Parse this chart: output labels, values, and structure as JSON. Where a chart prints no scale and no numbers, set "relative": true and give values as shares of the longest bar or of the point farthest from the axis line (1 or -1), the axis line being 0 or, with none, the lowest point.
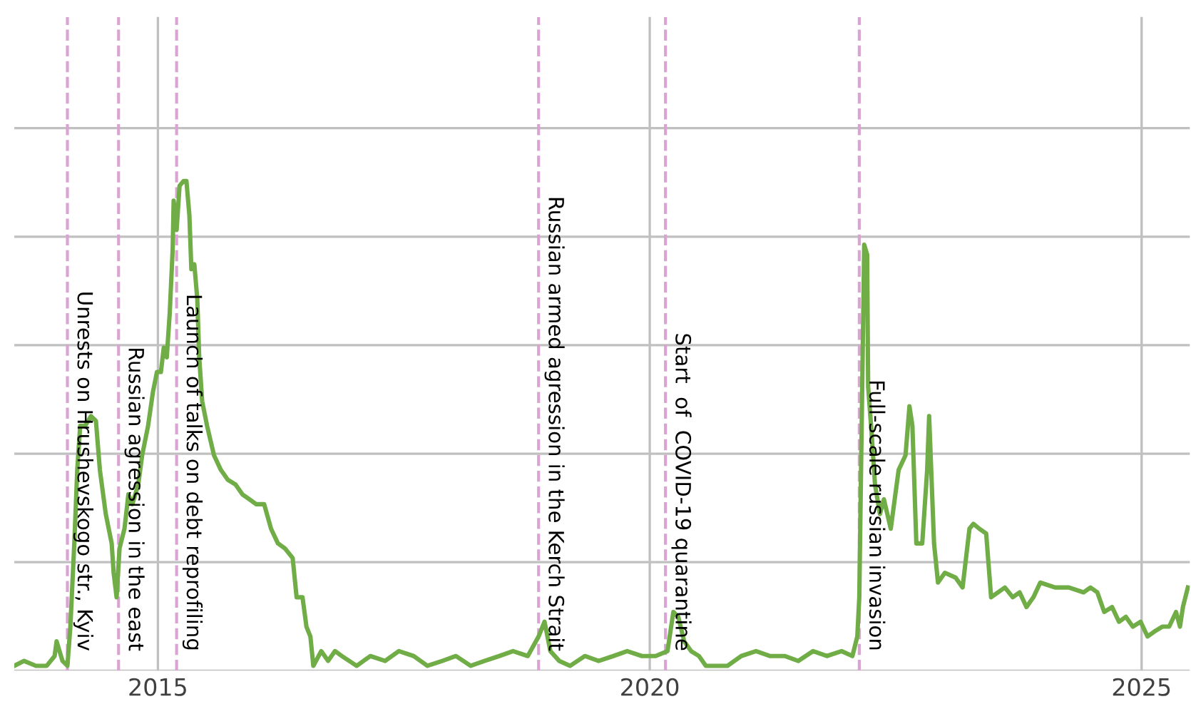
{
  "chart_data": {
    "type": "line",
    "relative": true,
    "tick_labels": "x",
    "grid": true,
    "marker": "none",
    "line_style": "solid",
    "xlim": [
      2013.54,
      2025.49
    ],
    "xticks": [
      2015,
      2020,
      2025
    ],
    "ref_lines": [
      {
        "axis": "x",
        "value": 2014.08,
        "label": "Unrests on Hrushevskogo str., Kyiv",
        "color": "#d9a3d2",
        "line_style": "dashed"
      },
      {
        "axis": "x",
        "value": 2014.6,
        "label": "Russian agression in the east",
        "color": "#d9a3d2",
        "line_style": "dashed"
      },
      {
        "axis": "x",
        "value": 2015.19,
        "label": "Launch of talks on debt reprofiling",
        "color": "#d9a3d2",
        "line_style": "dashed"
      },
      {
        "axis": "x",
        "value": 2018.87,
        "label": "Russian armed agression in the Kerch Strait",
        "color": "#d9a3d2",
        "line_style": "dashed"
      },
      {
        "axis": "x",
        "value": 2020.16,
        "label": "Start  of  COVID-19 quarantine",
        "color": "#d9a3d2",
        "line_style": "dashed"
      },
      {
        "axis": "x",
        "value": 2022.13,
        "label": "Full-scale russian invasion",
        "color": "#d9a3d2",
        "line_style": "dashed"
      }
    ],
    "series": [
      {
        "color": "#70ad47",
        "x": [
          2013.54,
          2013.64,
          2013.76,
          2013.87,
          2013.95,
          2013.97,
          2014.03,
          2014.08,
          2014.11,
          2014.15,
          2014.18,
          2014.21,
          2014.26,
          2014.32,
          2014.37,
          2014.41,
          2014.47,
          2014.53,
          2014.55,
          2014.58,
          2014.61,
          2014.66,
          2014.7,
          2014.74,
          2014.8,
          2014.84,
          2014.9,
          2014.95,
          2014.99,
          2015.03,
          2015.06,
          2015.09,
          2015.12,
          2015.15,
          2015.16,
          2015.19,
          2015.22,
          2015.26,
          2015.29,
          2015.32,
          2015.34,
          2015.37,
          2015.4,
          2015.42,
          2015.45,
          2015.5,
          2015.57,
          2015.64,
          2015.71,
          2015.79,
          2015.86,
          2015.93,
          2016.0,
          2016.08,
          2016.15,
          2016.22,
          2016.29,
          2016.37,
          2016.41,
          2016.47,
          2016.51,
          2016.55,
          2016.58,
          2016.66,
          2016.73,
          2016.8,
          2016.87,
          2017.02,
          2017.16,
          2017.31,
          2017.45,
          2017.6,
          2017.74,
          2017.89,
          2018.03,
          2018.18,
          2018.32,
          2018.47,
          2018.61,
          2018.76,
          2018.87,
          2018.93,
          2018.99,
          2019.08,
          2019.19,
          2019.34,
          2019.48,
          2019.63,
          2019.77,
          2019.92,
          2020.06,
          2020.18,
          2020.24,
          2020.29,
          2020.35,
          2020.42,
          2020.5,
          2020.57,
          2020.64,
          2020.79,
          2020.93,
          2021.08,
          2021.22,
          2021.37,
          2021.51,
          2021.66,
          2021.8,
          2021.95,
          2022.06,
          2022.11,
          2022.13,
          2022.15,
          2022.18,
          2022.21,
          2022.22,
          2022.25,
          2022.29,
          2022.34,
          2022.38,
          2022.45,
          2022.53,
          2022.6,
          2022.64,
          2022.67,
          2022.71,
          2022.77,
          2022.82,
          2022.84,
          2022.89,
          2022.93,
          2023.0,
          2023.11,
          2023.18,
          2023.25,
          2023.29,
          2023.35,
          2023.42,
          2023.47,
          2023.54,
          2023.61,
          2023.69,
          2023.76,
          2023.83,
          2023.9,
          2023.97,
          2024.12,
          2024.26,
          2024.41,
          2024.48,
          2024.55,
          2024.62,
          2024.7,
          2024.77,
          2024.84,
          2024.91,
          2024.99,
          2025.06,
          2025.13,
          2025.21,
          2025.28,
          2025.35,
          2025.39,
          2025.42,
          2025.47
        ],
        "values": [
          0.01,
          0.02,
          0.01,
          0.01,
          0.03,
          0.06,
          0.02,
          0.01,
          0.09,
          0.26,
          0.41,
          0.5,
          0.5,
          0.52,
          0.51,
          0.41,
          0.32,
          0.26,
          0.2,
          0.15,
          0.25,
          0.29,
          0.36,
          0.34,
          0.38,
          0.44,
          0.5,
          0.57,
          0.61,
          0.61,
          0.66,
          0.64,
          0.73,
          0.86,
          0.96,
          0.9,
          0.99,
          1.0,
          1.0,
          0.93,
          0.82,
          0.83,
          0.76,
          0.64,
          0.55,
          0.5,
          0.44,
          0.41,
          0.39,
          0.38,
          0.36,
          0.35,
          0.34,
          0.34,
          0.29,
          0.26,
          0.25,
          0.23,
          0.15,
          0.15,
          0.09,
          0.07,
          0.01,
          0.04,
          0.02,
          0.04,
          0.03,
          0.01,
          0.03,
          0.02,
          0.04,
          0.03,
          0.01,
          0.02,
          0.03,
          0.01,
          0.02,
          0.03,
          0.04,
          0.03,
          0.07,
          0.1,
          0.04,
          0.02,
          0.01,
          0.03,
          0.02,
          0.03,
          0.04,
          0.03,
          0.03,
          0.04,
          0.12,
          0.11,
          0.06,
          0.04,
          0.03,
          0.01,
          0.01,
          0.01,
          0.03,
          0.04,
          0.03,
          0.03,
          0.02,
          0.04,
          0.03,
          0.04,
          0.03,
          0.07,
          0.15,
          0.44,
          0.87,
          0.85,
          0.58,
          0.5,
          0.38,
          0.32,
          0.35,
          0.29,
          0.41,
          0.44,
          0.54,
          0.5,
          0.26,
          0.26,
          0.41,
          0.52,
          0.26,
          0.18,
          0.2,
          0.19,
          0.17,
          0.29,
          0.3,
          0.29,
          0.28,
          0.15,
          0.16,
          0.17,
          0.15,
          0.16,
          0.13,
          0.15,
          0.18,
          0.17,
          0.17,
          0.16,
          0.17,
          0.16,
          0.12,
          0.13,
          0.1,
          0.11,
          0.09,
          0.1,
          0.07,
          0.08,
          0.09,
          0.09,
          0.12,
          0.09,
          0.13,
          0.17
        ]
      }
    ]
  }
}
